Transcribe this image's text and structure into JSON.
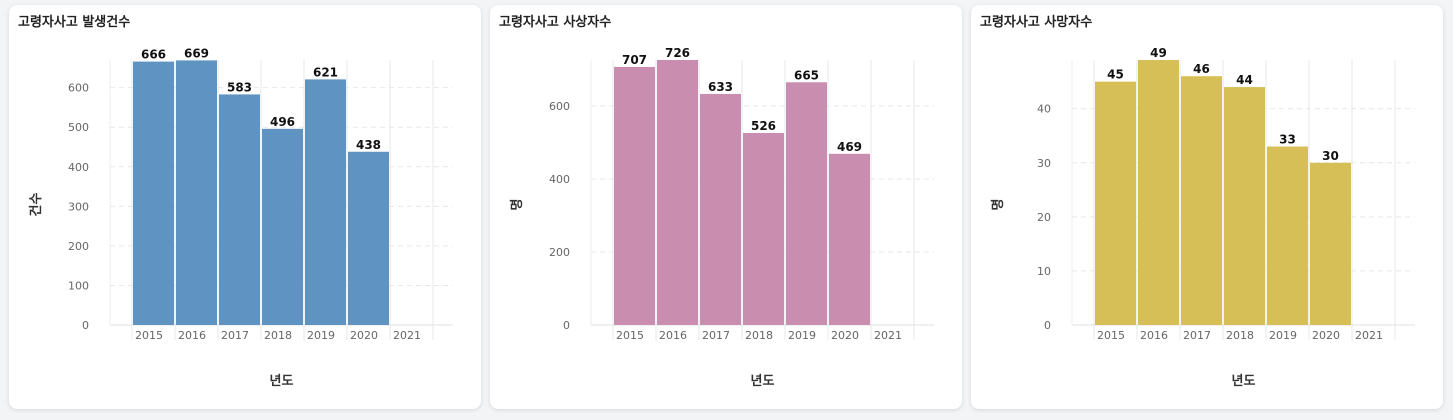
{
  "charts": [
    {
      "title": "고령자사고 발생건수",
      "color": "#5f93c2",
      "chart_data": {
        "type": "bar",
        "categories": [
          "2015",
          "2016",
          "2017",
          "2018",
          "2019",
          "2020",
          "2021"
        ],
        "values": [
          666,
          669,
          583,
          496,
          621,
          438,
          null
        ],
        "xlabel": "년도",
        "ylabel": "건수",
        "ylim": [
          0,
          670
        ],
        "yticks": [
          0,
          100,
          200,
          300,
          400,
          500,
          600
        ],
        "grid": true
      }
    },
    {
      "title": "고령자사고 사상자수",
      "color": "#c98db0",
      "chart_data": {
        "type": "bar",
        "categories": [
          "2015",
          "2016",
          "2017",
          "2018",
          "2019",
          "2020",
          "2021"
        ],
        "values": [
          707,
          726,
          633,
          526,
          665,
          469,
          null
        ],
        "xlabel": "년도",
        "ylabel": "명",
        "ylim": [
          0,
          726
        ],
        "yticks": [
          0,
          200,
          400,
          600
        ],
        "grid": true
      }
    },
    {
      "title": "고령자사고 사망자수",
      "color": "#d6bf56",
      "chart_data": {
        "type": "bar",
        "categories": [
          "2015",
          "2016",
          "2017",
          "2018",
          "2019",
          "2020",
          "2021"
        ],
        "values": [
          45,
          49,
          46,
          44,
          33,
          30,
          null
        ],
        "xlabel": "년도",
        "ylabel": "명",
        "ylim": [
          0,
          49
        ],
        "yticks": [
          0,
          10,
          20,
          30,
          40
        ],
        "grid": true
      }
    }
  ]
}
